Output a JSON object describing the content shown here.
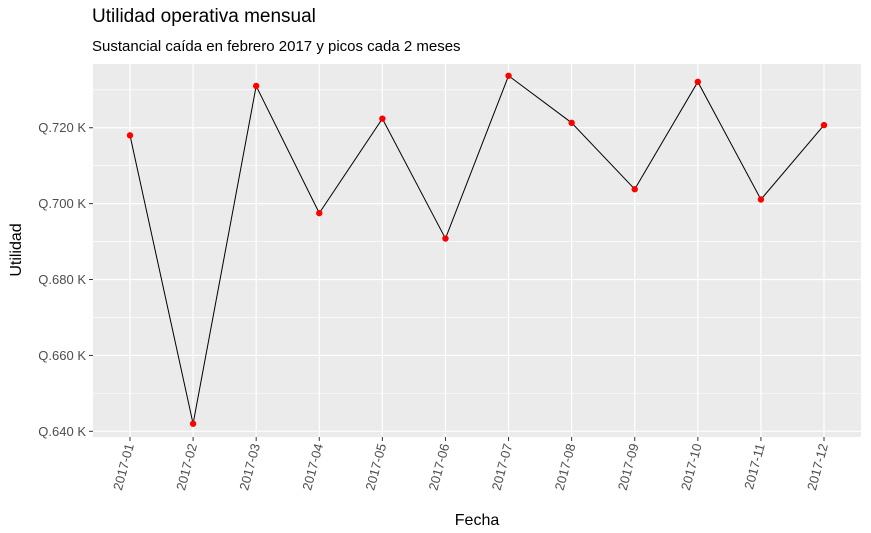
{
  "chart_data": {
    "type": "line",
    "title": "Utilidad operativa mensual",
    "subtitle": "Sustancial caída en febrero 2017 y picos cada 2 meses",
    "xlabel": "Fecha",
    "ylabel": "Utilidad",
    "categories": [
      "2017-01",
      "2017-02",
      "2017-03",
      "2017-04",
      "2017-05",
      "2017-06",
      "2017-07",
      "2017-08",
      "2017-09",
      "2017-10",
      "2017-11",
      "2017-12"
    ],
    "values": [
      718.0,
      642.0,
      731.0,
      697.5,
      722.4,
      690.8,
      733.7,
      721.3,
      703.8,
      732.1,
      701.1,
      720.7
    ],
    "yticks": [
      640,
      660,
      680,
      700,
      720
    ],
    "ytick_labels": [
      "Q.640 K",
      "Q.660 K",
      "Q.680 K",
      "Q.700 K",
      "Q.720 K"
    ],
    "ylim": [
      638.5,
      736.8
    ],
    "grid": true,
    "line_color": "#000000",
    "point_color": "#ff0000",
    "panel_color": "#ebebeb"
  }
}
